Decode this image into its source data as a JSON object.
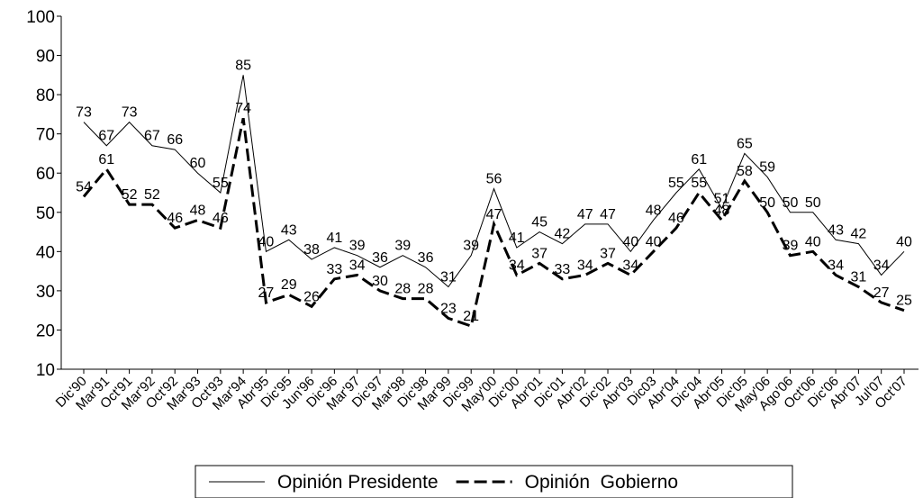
{
  "chart_data": {
    "type": "line",
    "categories": [
      "Dic'90",
      "Mar'91",
      "Oct'91",
      "Mar'92",
      "Oct'92",
      "Mar'93",
      "Oct'93",
      "Mar'94",
      "Abr'95",
      "Dic'95",
      "Jun'96",
      "Dic'96",
      "Mar'97",
      "Dic'97",
      "Mar'98",
      "Dic'98",
      "Mar'99",
      "Dic'99",
      "May'00",
      "Dic'00",
      "Abr'01",
      "Dic'01",
      "Abr'02",
      "Dic'02",
      "Abr'03",
      "Dic03",
      "Abr'04",
      "Dic'04",
      "Abr'05",
      "Dic'05",
      "May'06",
      "Ago'06",
      "Oct'06",
      "Dic'06",
      "Abr'07",
      "Jul'07",
      "Oct'07"
    ],
    "series": [
      {
        "name": "Opinión Presidente",
        "color": "#000000",
        "dash": false,
        "values": [
          73,
          67,
          73,
          67,
          66,
          60,
          55,
          85,
          40,
          43,
          38,
          41,
          39,
          36,
          39,
          36,
          31,
          39,
          56,
          41,
          45,
          42,
          47,
          47,
          40,
          48,
          55,
          61,
          51,
          65,
          59,
          50,
          50,
          43,
          42,
          34,
          40
        ]
      },
      {
        "name": "Opinión  Gobierno",
        "color": "#000000",
        "dash": true,
        "values": [
          54,
          61,
          52,
          52,
          46,
          48,
          46,
          74,
          27,
          29,
          26,
          33,
          34,
          30,
          28,
          28,
          23,
          21,
          47,
          34,
          37,
          33,
          34,
          37,
          34,
          40,
          46,
          55,
          48,
          58,
          50,
          39,
          40,
          34,
          31,
          27,
          25
        ]
      }
    ],
    "ylim": [
      10,
      100
    ],
    "yticks": [
      10,
      20,
      30,
      40,
      50,
      60,
      70,
      80,
      90,
      100
    ],
    "grid": false,
    "legend": "bottom"
  }
}
